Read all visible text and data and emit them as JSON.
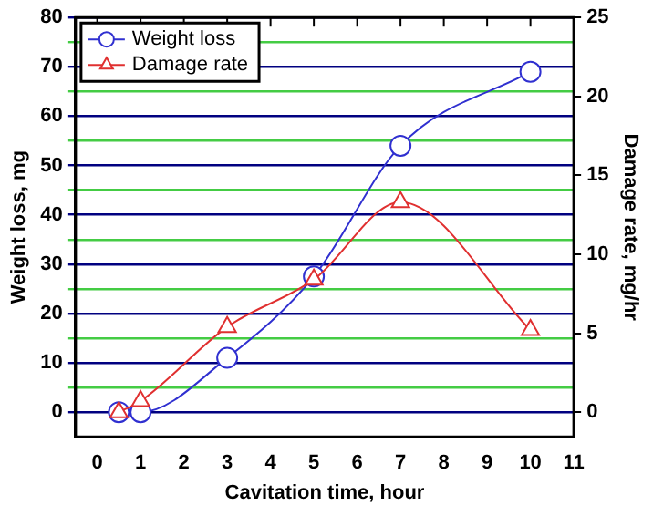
{
  "chart_data": {
    "type": "line",
    "xlabel": "Cavitation time, hour",
    "ylabel": "Weight loss, mg",
    "y2label": "Damage rate, mg/hr",
    "x": [
      0.5,
      1,
      3,
      5,
      7,
      10
    ],
    "series": [
      {
        "name": "Weight loss",
        "color": "#3030d0",
        "marker": "circle",
        "values": [
          0,
          0,
          11,
          27.5,
          54,
          69
        ]
      },
      {
        "name": "Damage rate",
        "color": "#e03030",
        "marker": "triangle",
        "axis": "y2",
        "values": [
          0,
          0.7,
          5.4,
          8.4,
          13.3,
          5.2
        ]
      }
    ],
    "xlim": [
      -0.5,
      11
    ],
    "xticks": [
      0,
      1,
      2,
      3,
      4,
      5,
      6,
      7,
      8,
      9,
      10,
      11
    ],
    "ylim": [
      -5,
      80
    ],
    "yticks": [
      0,
      {
        "value": 5,
        "label": null
      },
      10,
      {
        "value": 15,
        "label": null
      },
      20,
      {
        "value": 25,
        "label": null
      },
      30,
      {
        "value": 35,
        "label": null
      },
      40,
      {
        "value": 45,
        "label": null
      },
      50,
      {
        "value": 55,
        "label": null
      },
      60,
      {
        "value": 65,
        "label": null
      },
      70,
      {
        "value": 75,
        "label": null
      },
      80
    ],
    "y2lim": [
      -1.5625,
      25
    ],
    "y2ticks": [
      0,
      5,
      10,
      15,
      20,
      25
    ],
    "grid": "y",
    "legend": "top left"
  }
}
